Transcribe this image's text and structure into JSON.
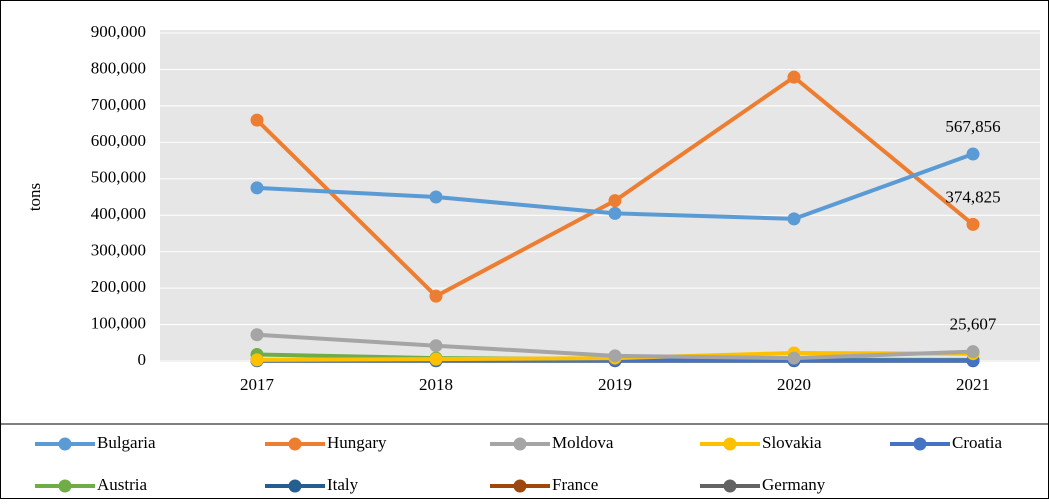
{
  "chart_data": {
    "type": "line",
    "y_label": "tons",
    "categories": [
      "2017",
      "2018",
      "2019",
      "2020",
      "2021"
    ],
    "ylim": [
      0,
      900000
    ],
    "yticks": [
      {
        "value": 0,
        "label": "0"
      },
      {
        "value": 100000,
        "label": "100,000"
      },
      {
        "value": 200000,
        "label": "200,000"
      },
      {
        "value": 300000,
        "label": "300,000"
      },
      {
        "value": 400000,
        "label": "400,000"
      },
      {
        "value": 500000,
        "label": "500,000"
      },
      {
        "value": 600000,
        "label": "600,000"
      },
      {
        "value": 700000,
        "label": "700,000"
      },
      {
        "value": 800000,
        "label": "800,000"
      },
      {
        "value": 900000,
        "label": "900,000"
      }
    ],
    "grid": true,
    "legend": "bottom",
    "series": [
      {
        "name": "Bulgaria",
        "color": "#5b9bd5",
        "values": [
          475000,
          450000,
          405000,
          390000,
          567856
        ],
        "value_labels": [
          null,
          null,
          null,
          null,
          "567,856"
        ]
      },
      {
        "name": "Hungary",
        "color": "#ed7d31",
        "values": [
          661000,
          178000,
          440000,
          779000,
          374825
        ],
        "value_labels": [
          null,
          null,
          null,
          null,
          "374,825"
        ]
      },
      {
        "name": "Moldova",
        "color": "#a5a5a5",
        "values": [
          72000,
          42000,
          14000,
          8000,
          25607
        ],
        "value_labels": [
          null,
          null,
          null,
          null,
          "25,607"
        ]
      },
      {
        "name": "Slovakia",
        "color": "#ffc000",
        "values": [
          3000,
          5000,
          8000,
          22000,
          20000
        ]
      },
      {
        "name": "Croatia",
        "color": "#4472c4",
        "values": [
          2000,
          2000,
          2000,
          2000,
          2000
        ]
      },
      {
        "name": "Austria",
        "color": "#70ad47",
        "values": [
          18000,
          8000,
          5000,
          4000,
          3000
        ]
      },
      {
        "name": "Italy",
        "color": "#255e91",
        "values": [
          1000,
          1000,
          1000,
          1000,
          1000
        ]
      },
      {
        "name": "France",
        "color": "#9e480e",
        "values": [
          1000,
          1000,
          1000,
          1000,
          1000
        ]
      },
      {
        "name": "Germany",
        "color": "#636363",
        "values": [
          1000,
          1000,
          1000,
          1000,
          1000
        ]
      }
    ]
  }
}
